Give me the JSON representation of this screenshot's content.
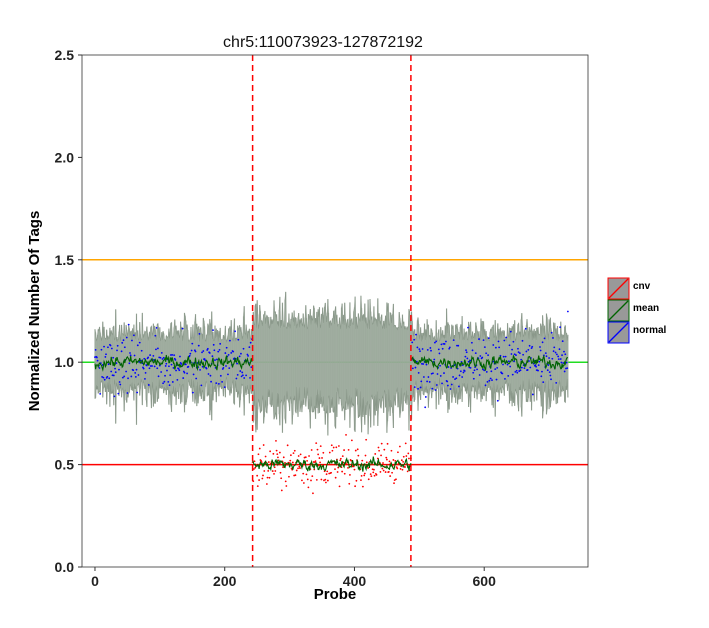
{
  "chart_data": {
    "type": "line",
    "title": "chr5:110073923-127872192",
    "xlabel": "Probe",
    "ylabel": "Normalized Number Of Tags",
    "xlim": [
      -20,
      760
    ],
    "ylim": [
      0,
      2.5
    ],
    "x_ticks": [
      "0",
      "200",
      "400",
      "600"
    ],
    "y_ticks": [
      "0.0",
      "0.5",
      "1.0",
      "1.5",
      "2.0",
      "2.5"
    ],
    "n_probes": 730,
    "cnv_region": {
      "start": 243,
      "end": 487
    },
    "reference_lines": [
      {
        "y": 1.5,
        "color": "#ffa500"
      },
      {
        "y": 1.0,
        "color": "#22dd22"
      },
      {
        "y": 0.5,
        "color": "#ff0000"
      }
    ],
    "boundary_line_color": "#ff0000",
    "band_color": "#9aa89a",
    "mean_levels": {
      "normal": 1.0,
      "cnv": 0.5
    },
    "grid": false,
    "legend_position": "right",
    "series": [
      {
        "name": "cnv",
        "color": "#ff0000"
      },
      {
        "name": "mean",
        "color": "#006400"
      },
      {
        "name": "normal",
        "color": "#0000ff"
      }
    ]
  }
}
